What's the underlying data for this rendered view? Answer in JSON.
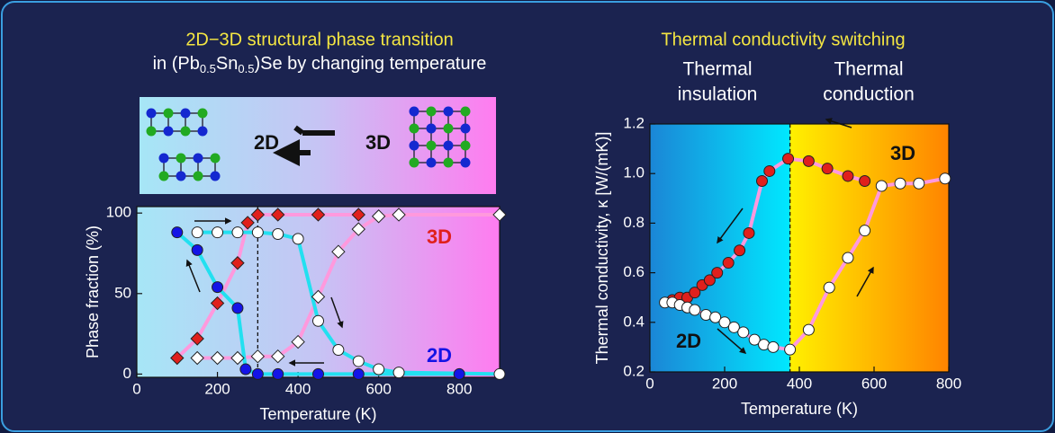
{
  "chart_data": [
    {
      "type": "scatter",
      "title": "2D−3D structural phase transition",
      "subtitle_parts": [
        "in (Pb",
        "0.5",
        "Sn",
        "0.5",
        ")Se by changing temperature"
      ],
      "diagram_labels": [
        "2D",
        "3D"
      ],
      "x_label": "Temperature (K)",
      "y_label": "Phase fraction (%)",
      "xlim": [
        0,
        900
      ],
      "xticks": [
        0,
        200,
        400,
        600,
        800
      ],
      "ylim": [
        -2,
        104
      ],
      "yticks": [
        0,
        50,
        100
      ],
      "vline": 300,
      "annotations": [
        "3D",
        "2D"
      ],
      "series": [
        {
          "marker": "diamond",
          "color": "#e0201c",
          "line_color": "#ff99dd",
          "x": [
            100,
            150,
            200,
            250,
            275,
            300,
            350,
            450,
            550
          ],
          "values": [
            10,
            22,
            44,
            69,
            94,
            99,
            99,
            99,
            99
          ]
        },
        {
          "marker": "diamond",
          "color": "#ffffff",
          "line_color": "#ff99dd",
          "x": [
            150,
            200,
            250,
            300,
            350,
            400,
            450,
            500,
            550,
            600,
            650,
            900
          ],
          "values": [
            10,
            10,
            10,
            11,
            11,
            20,
            48,
            76,
            90,
            98,
            99,
            99
          ]
        },
        {
          "marker": "circle",
          "color": "#1414e6",
          "line_color": "#22e0f0",
          "x": [
            100,
            150,
            200,
            250,
            270,
            300,
            350,
            450,
            550,
            800
          ],
          "values": [
            88,
            77,
            54,
            41,
            3,
            0,
            0,
            0,
            0,
            0
          ]
        },
        {
          "marker": "circle",
          "color": "#ffffff",
          "line_color": "#22e0f0",
          "x": [
            150,
            200,
            250,
            300,
            350,
            400,
            450,
            500,
            550,
            600,
            650,
            900
          ],
          "values": [
            88,
            88,
            88,
            88,
            87,
            84,
            33,
            15,
            8,
            3,
            1,
            0
          ]
        }
      ]
    },
    {
      "type": "scatter",
      "title": "Thermal conductivity switching",
      "region_labels": [
        [
          "Thermal",
          "insulation"
        ],
        [
          "Thermal",
          "conduction"
        ]
      ],
      "x_label": "Temperature (K)",
      "y_label": "Thermal conductivity, κ  [W/(mK)]",
      "xlim": [
        0,
        800
      ],
      "xticks": [
        0,
        200,
        400,
        600,
        800
      ],
      "ylim": [
        0.2,
        1.2
      ],
      "yticks": [
        0.2,
        0.4,
        0.6,
        0.8,
        {
          "value": 1,
          "label": "1.0"
        },
        1.2
      ],
      "vline": 375,
      "annotations": [
        "3D",
        "2D"
      ],
      "series": [
        {
          "marker": "circle",
          "color": "#e0201c",
          "line_color": "#ff99dd",
          "x": [
            60,
            80,
            100,
            120,
            140,
            160,
            180,
            210,
            240,
            265,
            300,
            320,
            370,
            425,
            475,
            530,
            575
          ],
          "values": [
            0.49,
            0.5,
            0.5,
            0.52,
            0.55,
            0.57,
            0.6,
            0.64,
            0.69,
            0.76,
            0.97,
            1.01,
            1.06,
            1.05,
            1.02,
            0.99,
            0.97
          ]
        },
        {
          "marker": "circle",
          "color": "#ffffff",
          "line_color": "#ff99dd",
          "x": [
            40,
            60,
            80,
            100,
            120,
            150,
            175,
            200,
            225,
            250,
            280,
            305,
            330,
            375,
            425,
            480,
            530,
            575,
            620,
            670,
            720,
            790
          ],
          "values": [
            0.48,
            0.48,
            0.47,
            0.46,
            0.45,
            0.43,
            0.42,
            0.4,
            0.38,
            0.36,
            0.33,
            0.31,
            0.3,
            0.29,
            0.37,
            0.54,
            0.66,
            0.77,
            0.95,
            0.96,
            0.96,
            0.98
          ]
        }
      ]
    }
  ]
}
